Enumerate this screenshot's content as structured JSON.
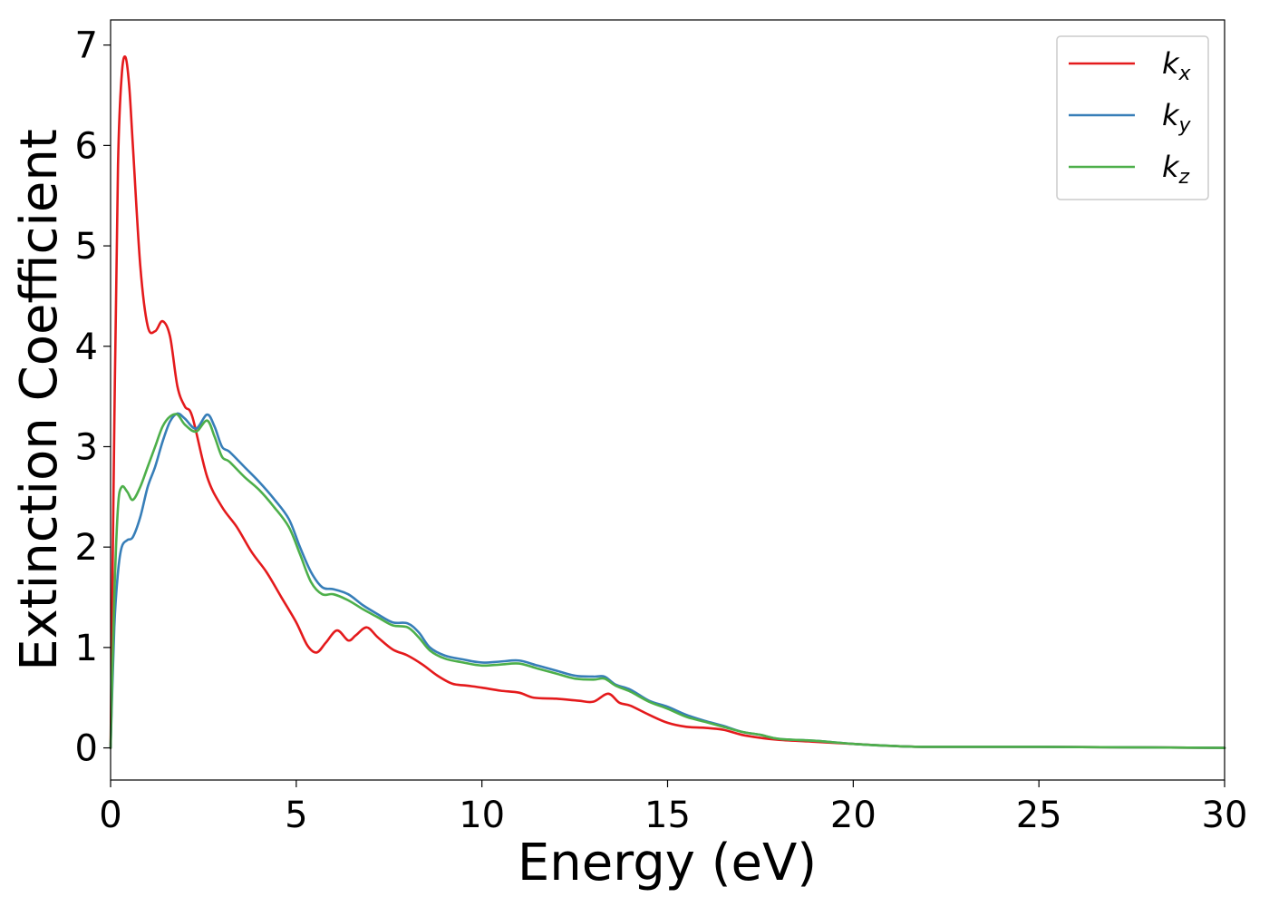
{
  "chart_data": {
    "type": "line",
    "title": "",
    "xlabel": "Energy (eV)",
    "ylabel": "Extinction Coefficient",
    "xlim": [
      0,
      30
    ],
    "ylim": [
      -0.32,
      7.25
    ],
    "xticks": [
      0,
      5,
      10,
      15,
      20,
      25,
      30
    ],
    "yticks": [
      0,
      1,
      2,
      3,
      4,
      5,
      6,
      7
    ],
    "xtick_labels": [
      "0",
      "5",
      "10",
      "15",
      "20",
      "25",
      "30"
    ],
    "ytick_labels": [
      "0",
      "1",
      "2",
      "3",
      "4",
      "5",
      "6",
      "7"
    ],
    "grid": false,
    "legend_position": "top-right",
    "series": [
      {
        "name": "k_x",
        "legend_base": "k",
        "legend_sub": "x",
        "color": "#e41a1c",
        "x": [
          0,
          0.1,
          0.2,
          0.3,
          0.4,
          0.5,
          0.6,
          0.8,
          1.0,
          1.2,
          1.4,
          1.6,
          1.8,
          2.0,
          2.2,
          2.6,
          3.0,
          3.4,
          3.8,
          4.2,
          4.6,
          5.0,
          5.3,
          5.55,
          5.8,
          6.1,
          6.4,
          6.6,
          6.9,
          7.2,
          7.6,
          8.0,
          8.4,
          8.8,
          9.2,
          9.6,
          10.0,
          10.5,
          11.0,
          11.4,
          12.0,
          12.6,
          13.0,
          13.4,
          13.7,
          14.0,
          14.5,
          15.0,
          15.5,
          16.0,
          16.5,
          17.0,
          17.5,
          18.0,
          19.0,
          20.0,
          21.0,
          22.0,
          25.0,
          30.0
        ],
        "y": [
          0.0,
          3.2,
          5.8,
          6.7,
          6.88,
          6.6,
          6.0,
          4.8,
          4.2,
          4.15,
          4.25,
          4.1,
          3.6,
          3.4,
          3.3,
          2.7,
          2.4,
          2.2,
          1.95,
          1.75,
          1.5,
          1.25,
          1.02,
          0.95,
          1.05,
          1.17,
          1.07,
          1.12,
          1.2,
          1.1,
          0.98,
          0.92,
          0.83,
          0.72,
          0.64,
          0.62,
          0.6,
          0.57,
          0.55,
          0.5,
          0.49,
          0.47,
          0.46,
          0.54,
          0.45,
          0.42,
          0.33,
          0.25,
          0.21,
          0.2,
          0.18,
          0.13,
          0.1,
          0.08,
          0.06,
          0.04,
          0.02,
          0.01,
          0.01,
          0.0
        ]
      },
      {
        "name": "k_y",
        "legend_base": "k",
        "legend_sub": "y",
        "color": "#377eb8",
        "x": [
          0,
          0.1,
          0.2,
          0.3,
          0.45,
          0.6,
          0.8,
          1.0,
          1.2,
          1.4,
          1.6,
          1.8,
          2.0,
          2.3,
          2.6,
          2.8,
          3.0,
          3.2,
          3.6,
          4.0,
          4.4,
          4.8,
          5.1,
          5.4,
          5.7,
          6.0,
          6.4,
          6.8,
          7.2,
          7.6,
          8.0,
          8.3,
          8.6,
          9.0,
          9.5,
          10.0,
          10.5,
          11.0,
          11.5,
          12.0,
          12.5,
          13.0,
          13.3,
          13.6,
          14.0,
          14.5,
          15.0,
          15.5,
          16.0,
          16.5,
          17.0,
          17.5,
          18.0,
          19.0,
          20.0,
          21.0,
          22.0,
          25.0,
          30.0
        ],
        "y": [
          0.0,
          1.2,
          1.75,
          2.0,
          2.07,
          2.1,
          2.3,
          2.6,
          2.8,
          3.05,
          3.25,
          3.33,
          3.28,
          3.18,
          3.32,
          3.2,
          3.0,
          2.95,
          2.8,
          2.65,
          2.48,
          2.28,
          2.0,
          1.75,
          1.6,
          1.58,
          1.53,
          1.42,
          1.33,
          1.25,
          1.24,
          1.15,
          1.0,
          0.92,
          0.88,
          0.85,
          0.86,
          0.87,
          0.82,
          0.77,
          0.72,
          0.71,
          0.71,
          0.63,
          0.58,
          0.47,
          0.41,
          0.33,
          0.27,
          0.22,
          0.16,
          0.13,
          0.09,
          0.07,
          0.04,
          0.02,
          0.01,
          0.01,
          0.0
        ]
      },
      {
        "name": "k_z",
        "legend_base": "k",
        "legend_sub": "z",
        "color": "#4daf4a",
        "x": [
          0,
          0.1,
          0.2,
          0.3,
          0.45,
          0.6,
          0.8,
          1.0,
          1.2,
          1.4,
          1.6,
          1.8,
          2.0,
          2.3,
          2.6,
          2.8,
          3.0,
          3.2,
          3.6,
          4.0,
          4.4,
          4.8,
          5.1,
          5.4,
          5.7,
          6.0,
          6.4,
          6.8,
          7.2,
          7.6,
          8.0,
          8.3,
          8.6,
          9.0,
          9.5,
          10.0,
          10.5,
          11.0,
          11.5,
          12.0,
          12.5,
          13.0,
          13.3,
          13.6,
          14.0,
          14.5,
          15.0,
          15.5,
          16.0,
          16.5,
          17.0,
          17.5,
          18.0,
          19.0,
          20.0,
          21.0,
          22.0,
          25.0,
          30.0
        ],
        "y": [
          0.0,
          1.5,
          2.4,
          2.6,
          2.55,
          2.47,
          2.6,
          2.8,
          3.0,
          3.2,
          3.3,
          3.32,
          3.22,
          3.15,
          3.26,
          3.1,
          2.9,
          2.85,
          2.7,
          2.57,
          2.4,
          2.2,
          1.93,
          1.65,
          1.53,
          1.53,
          1.47,
          1.38,
          1.3,
          1.22,
          1.2,
          1.1,
          0.97,
          0.89,
          0.85,
          0.82,
          0.83,
          0.84,
          0.79,
          0.74,
          0.69,
          0.68,
          0.69,
          0.62,
          0.56,
          0.46,
          0.39,
          0.31,
          0.26,
          0.21,
          0.16,
          0.13,
          0.09,
          0.07,
          0.04,
          0.02,
          0.01,
          0.01,
          0.0
        ]
      }
    ]
  }
}
